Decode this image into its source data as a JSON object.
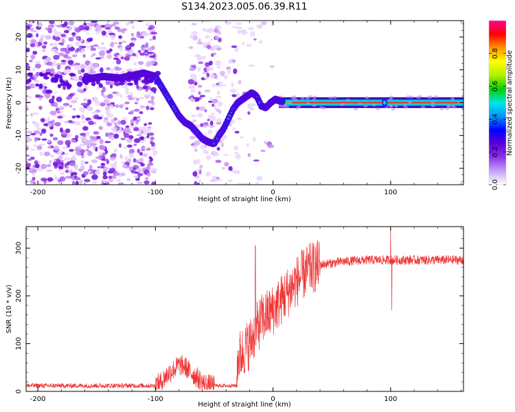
{
  "title": "S134.2023.005.06.39.R11",
  "chart_data": [
    {
      "type": "heatmap",
      "xlabel": "Height of straight line (km)",
      "ylabel": "Frequency (Hz)",
      "xlim": [
        -210,
        162
      ],
      "ylim": [
        -25,
        25
      ],
      "xticks": [
        "-200",
        "-100",
        "0",
        "100"
      ],
      "xtick_values": [
        -200,
        -100,
        0,
        100
      ],
      "yticks": [
        "20",
        "10",
        "0",
        "-10",
        "-20"
      ],
      "ytick_values": [
        20,
        10,
        0,
        -10,
        -20
      ],
      "colorbar": {
        "label": "Normalized spectral amplitude",
        "range": [
          0,
          1
        ],
        "ticks": [
          "0.0",
          "0.2",
          "0.4",
          "0.6",
          "0.8"
        ],
        "tick_values": [
          0,
          0.2,
          0.4,
          0.6,
          0.8
        ],
        "colors": [
          "#ffffff",
          "#c7a0f7",
          "#8e33ee",
          "#5a00d8",
          "#0000ff",
          "#0096ff",
          "#00e6e6",
          "#00d200",
          "#b4f000",
          "#ffff00",
          "#ff9600",
          "#ff0000",
          "#ff0096"
        ]
      },
      "ridge": {
        "x": [
          -160,
          -145,
          -130,
          -110,
          -100,
          -95,
          -90,
          -85,
          -80,
          -75,
          -70,
          -65,
          -60,
          -55,
          -50,
          -46,
          -42,
          -38,
          -34,
          -30,
          -26,
          -22,
          -18,
          -14,
          -10,
          -6,
          -2,
          2,
          6,
          10,
          20,
          40,
          60,
          80,
          100,
          120,
          140,
          160
        ],
        "y": [
          7,
          8,
          7.5,
          9,
          8,
          5,
          2,
          -1,
          -4,
          -6,
          -7,
          -9,
          -11,
          -12,
          -12.5,
          -10,
          -8,
          -5,
          -2,
          0,
          1,
          2,
          3,
          2,
          -1,
          -1.5,
          0,
          1,
          0.5,
          0.3,
          0,
          0,
          0,
          0,
          0,
          0,
          0,
          0
        ]
      }
    },
    {
      "type": "line",
      "series": [
        {
          "name": "SNR",
          "color": "#ee3333"
        }
      ],
      "xlabel": "Height of straight line (km)",
      "ylabel": "SNR (10 * v/v)",
      "xlim": [
        -210,
        162
      ],
      "ylim": [
        0,
        345
      ],
      "xticks": [
        "-200",
        "-100",
        "0",
        "100"
      ],
      "xtick_values": [
        -200,
        -100,
        0,
        100
      ],
      "yticks": [
        "0",
        "100",
        "200",
        "300"
      ],
      "ytick_values": [
        0,
        100,
        200,
        300
      ],
      "trend": {
        "x": [
          -210,
          -100,
          -95,
          -90,
          -85,
          -80,
          -75,
          -70,
          -65,
          -60,
          -55,
          -50,
          -40,
          -31,
          -30,
          -20,
          -10,
          0,
          10,
          20,
          30,
          40,
          60,
          80,
          100,
          120,
          140,
          162
        ],
        "y": [
          12,
          12,
          20,
          35,
          45,
          55,
          52,
          40,
          30,
          18,
          14,
          12,
          12,
          12,
          70,
          100,
          150,
          170,
          200,
          230,
          255,
          265,
          272,
          275,
          275,
          275,
          275,
          275
        ]
      },
      "spikes": [
        {
          "x": -15,
          "y": 305
        },
        {
          "x": 100,
          "y": 345
        },
        {
          "x": 101,
          "y": 170
        }
      ]
    }
  ]
}
